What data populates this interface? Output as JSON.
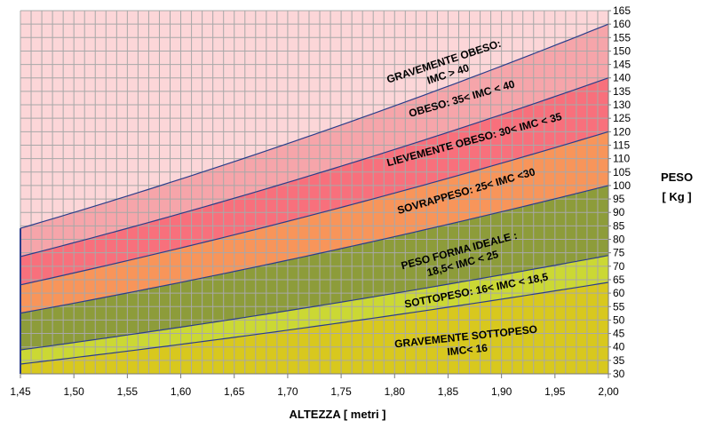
{
  "chart_data": {
    "type": "area",
    "xlabel": "ALTEZZA [ metri ]",
    "ylabel_lines": [
      "PESO",
      "[ Kg ]"
    ],
    "xlim": [
      1.45,
      2.0
    ],
    "ylim": [
      30,
      165
    ],
    "x_ticks": [
      "1,45",
      "1,50",
      "1,55",
      "1,60",
      "1,65",
      "1,70",
      "1,75",
      "1,80",
      "1,85",
      "1,90",
      "1,95",
      "2,00"
    ],
    "x_tick_values": [
      1.45,
      1.5,
      1.55,
      1.6,
      1.65,
      1.7,
      1.75,
      1.8,
      1.85,
      1.9,
      1.95,
      2.0
    ],
    "y_ticks": [
      30,
      35,
      40,
      45,
      50,
      55,
      60,
      65,
      70,
      75,
      80,
      85,
      90,
      95,
      100,
      105,
      110,
      115,
      120,
      125,
      130,
      135,
      140,
      145,
      150,
      155,
      160,
      165
    ],
    "grid": true,
    "bmi_boundaries": [
      16,
      18.5,
      25,
      30,
      35,
      40
    ],
    "zones": [
      {
        "lines": [
          "GRAVEMENTE SOTTOPESO",
          "IMC< 16"
        ],
        "bmi_low": null,
        "bmi_high": 16,
        "color": "#d8c81e"
      },
      {
        "lines": [
          "SOTTOPESO:  16< IMC  < 18,5"
        ],
        "bmi_low": 16,
        "bmi_high": 18.5,
        "color": "#cbd834"
      },
      {
        "lines": [
          "PESO FORMA IDEALE :",
          "18,5< IMC  < 25"
        ],
        "bmi_low": 18.5,
        "bmi_high": 25,
        "color": "#8d9c3a"
      },
      {
        "lines": [
          "SOVRAPPESO:  25< IMC  <30"
        ],
        "bmi_low": 25,
        "bmi_high": 30,
        "color": "#f8955a"
      },
      {
        "lines": [
          "LIEVEMENTE OBESO:  30< IMC  < 35"
        ],
        "bmi_low": 30,
        "bmi_high": 35,
        "color": "#f8707c"
      },
      {
        "lines": [
          "OBESO:  35< IMC  < 40"
        ],
        "bmi_low": 35,
        "bmi_high": 40,
        "color": "#f6a5aa"
      },
      {
        "lines": [
          "GRAVEMENTE OBESO:",
          "IMC > 40"
        ],
        "bmi_low": 40,
        "bmi_high": null,
        "color": "#fcd6d8"
      }
    ],
    "line_color": "#2b3d8a",
    "grid_color": "#a8a8a8"
  }
}
